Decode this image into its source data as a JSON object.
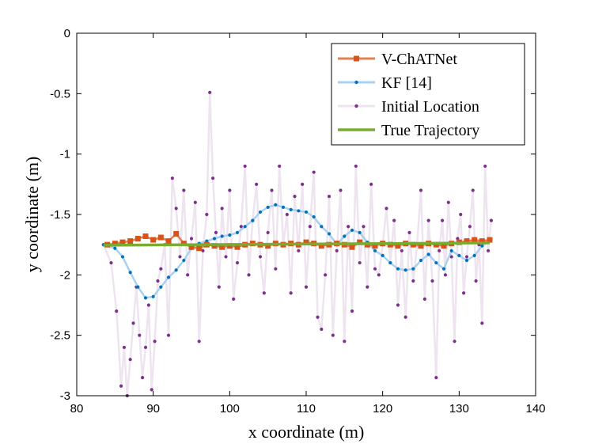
{
  "chart_data": {
    "type": "line",
    "title": "",
    "xlabel": "x coordinate (m)",
    "ylabel": "y coordinate (m)",
    "xlim": [
      80,
      140
    ],
    "ylim": [
      -3,
      0
    ],
    "xticks": [
      80,
      90,
      100,
      110,
      120,
      130,
      140
    ],
    "yticks": [
      0,
      -0.5,
      -1,
      -1.5,
      -2,
      -2.5,
      -3
    ],
    "xtick_labels": [
      "80",
      "90",
      "100",
      "110",
      "120",
      "130",
      "140"
    ],
    "ytick_labels": [
      "0",
      "-0.5",
      "-1",
      "-1.5",
      "-2",
      "-2.5",
      "-3"
    ],
    "grid": false,
    "legend_position": "top-right",
    "series": [
      {
        "name": "Initial Location",
        "color": "#7e2f8e",
        "line_color": "#ede4ef",
        "marker": "dot",
        "points": [
          [
            83.5,
            -1.75
          ],
          [
            84.5,
            -1.9
          ],
          [
            85.2,
            -2.3
          ],
          [
            85.8,
            -2.92
          ],
          [
            86.2,
            -2.6
          ],
          [
            86.6,
            -3.0
          ],
          [
            87.0,
            -2.7
          ],
          [
            87.4,
            -2.4
          ],
          [
            87.8,
            -2.1
          ],
          [
            88.2,
            -2.5
          ],
          [
            88.6,
            -2.85
          ],
          [
            89.0,
            -2.6
          ],
          [
            89.4,
            -2.25
          ],
          [
            89.8,
            -2.95
          ],
          [
            90.2,
            -2.55
          ],
          [
            90.6,
            -2.05
          ],
          [
            91.0,
            -1.95
          ],
          [
            91.5,
            -1.75
          ],
          [
            92.0,
            -2.5
          ],
          [
            92.5,
            -1.2
          ],
          [
            93.0,
            -1.45
          ],
          [
            93.5,
            -1.85
          ],
          [
            94.0,
            -1.3
          ],
          [
            94.5,
            -2.0
          ],
          [
            95.0,
            -1.7
          ],
          [
            95.5,
            -1.4
          ],
          [
            96.0,
            -2.55
          ],
          [
            96.5,
            -1.8
          ],
          [
            97.0,
            -1.5
          ],
          [
            97.4,
            -0.49
          ],
          [
            97.8,
            -1.2
          ],
          [
            98.2,
            -1.65
          ],
          [
            98.6,
            -2.1
          ],
          [
            99.0,
            -1.45
          ],
          [
            99.5,
            -1.85
          ],
          [
            100.0,
            -1.3
          ],
          [
            100.5,
            -2.2
          ],
          [
            101.0,
            -1.9
          ],
          [
            101.5,
            -1.6
          ],
          [
            102.0,
            -1.1
          ],
          [
            102.5,
            -2.0
          ],
          [
            103.0,
            -1.55
          ],
          [
            103.5,
            -1.25
          ],
          [
            104.0,
            -1.85
          ],
          [
            104.5,
            -2.15
          ],
          [
            105.0,
            -1.65
          ],
          [
            105.5,
            -1.3
          ],
          [
            106.0,
            -1.95
          ],
          [
            106.5,
            -1.1
          ],
          [
            107.0,
            -1.75
          ],
          [
            107.5,
            -1.5
          ],
          [
            108.0,
            -2.15
          ],
          [
            108.5,
            -1.35
          ],
          [
            109.0,
            -1.8
          ],
          [
            109.5,
            -1.25
          ],
          [
            110.0,
            -2.1
          ],
          [
            110.5,
            -1.6
          ],
          [
            111.0,
            -1.15
          ],
          [
            111.5,
            -2.35
          ],
          [
            112.0,
            -2.45
          ],
          [
            112.5,
            -2.0
          ],
          [
            113.0,
            -1.35
          ],
          [
            113.5,
            -2.5
          ],
          [
            114.0,
            -1.8
          ],
          [
            114.5,
            -1.3
          ],
          [
            115.0,
            -2.55
          ],
          [
            115.5,
            -1.6
          ],
          [
            116.0,
            -2.3
          ],
          [
            116.5,
            -1.1
          ],
          [
            117.0,
            -1.9
          ],
          [
            117.5,
            -1.6
          ],
          [
            118.0,
            -2.1
          ],
          [
            118.5,
            -1.25
          ],
          [
            119.0,
            -1.95
          ],
          [
            119.5,
            -2.0
          ],
          [
            120.0,
            -1.75
          ],
          [
            120.5,
            -1.45
          ],
          [
            121.0,
            -1.9
          ],
          [
            121.5,
            -1.55
          ],
          [
            122.0,
            -2.25
          ],
          [
            122.5,
            -1.8
          ],
          [
            123.0,
            -2.35
          ],
          [
            123.5,
            -1.65
          ],
          [
            124.0,
            -2.05
          ],
          [
            124.5,
            -1.75
          ],
          [
            125.0,
            -1.3
          ],
          [
            125.5,
            -2.2
          ],
          [
            126.0,
            -1.55
          ],
          [
            126.5,
            -2.05
          ],
          [
            127.0,
            -2.85
          ],
          [
            127.4,
            -1.8
          ],
          [
            127.8,
            -1.55
          ],
          [
            128.2,
            -2.0
          ],
          [
            128.6,
            -1.4
          ],
          [
            129.0,
            -1.85
          ],
          [
            129.4,
            -2.55
          ],
          [
            129.8,
            -1.7
          ],
          [
            130.2,
            -1.5
          ],
          [
            130.6,
            -2.15
          ],
          [
            131.0,
            -1.85
          ],
          [
            131.4,
            -1.6
          ],
          [
            131.8,
            -1.3
          ],
          [
            132.2,
            -2.05
          ],
          [
            132.6,
            -1.75
          ],
          [
            133.0,
            -2.4
          ],
          [
            133.4,
            -1.1
          ],
          [
            133.8,
            -1.8
          ],
          [
            134.2,
            -1.55
          ]
        ]
      },
      {
        "name": "KF [14]",
        "color": "#0072bd",
        "line_color": "#a9d0f0",
        "marker": "dot",
        "points": [
          [
            83.5,
            -1.75
          ],
          [
            85.0,
            -1.78
          ],
          [
            86.0,
            -1.85
          ],
          [
            87.0,
            -1.98
          ],
          [
            88.0,
            -2.1
          ],
          [
            89.0,
            -2.19
          ],
          [
            90.0,
            -2.18
          ],
          [
            91.0,
            -2.1
          ],
          [
            92.0,
            -2.02
          ],
          [
            93.0,
            -1.96
          ],
          [
            94.0,
            -1.88
          ],
          [
            95.0,
            -1.78
          ],
          [
            96.0,
            -1.74
          ],
          [
            97.0,
            -1.72
          ],
          [
            98.0,
            -1.7
          ],
          [
            99.0,
            -1.68
          ],
          [
            100.0,
            -1.67
          ],
          [
            101.0,
            -1.65
          ],
          [
            102.0,
            -1.6
          ],
          [
            103.0,
            -1.55
          ],
          [
            104.0,
            -1.48
          ],
          [
            105.0,
            -1.44
          ],
          [
            106.0,
            -1.42
          ],
          [
            107.0,
            -1.44
          ],
          [
            108.0,
            -1.46
          ],
          [
            109.0,
            -1.47
          ],
          [
            110.0,
            -1.48
          ],
          [
            111.0,
            -1.52
          ],
          [
            112.0,
            -1.6
          ],
          [
            113.0,
            -1.66
          ],
          [
            114.0,
            -1.75
          ],
          [
            115.0,
            -1.68
          ],
          [
            116.0,
            -1.63
          ],
          [
            117.0,
            -1.65
          ],
          [
            118.0,
            -1.73
          ],
          [
            119.0,
            -1.8
          ],
          [
            120.0,
            -1.84
          ],
          [
            121.0,
            -1.9
          ],
          [
            122.0,
            -1.95
          ],
          [
            123.0,
            -1.96
          ],
          [
            124.0,
            -1.95
          ],
          [
            125.0,
            -1.88
          ],
          [
            126.0,
            -1.83
          ],
          [
            127.0,
            -1.9
          ],
          [
            128.0,
            -1.95
          ],
          [
            129.0,
            -1.8
          ],
          [
            130.0,
            -1.84
          ],
          [
            131.0,
            -1.88
          ],
          [
            132.0,
            -1.84
          ],
          [
            133.0,
            -1.76
          ],
          [
            134.0,
            -1.72
          ]
        ]
      },
      {
        "name": "V-ChATNet",
        "color": "#d95319",
        "line_color": "#e4804f",
        "marker": "square",
        "points": [
          [
            84.0,
            -1.75
          ],
          [
            85.0,
            -1.74
          ],
          [
            86.0,
            -1.73
          ],
          [
            87.0,
            -1.72
          ],
          [
            88.0,
            -1.7
          ],
          [
            89.0,
            -1.68
          ],
          [
            90.0,
            -1.71
          ],
          [
            91.0,
            -1.69
          ],
          [
            92.0,
            -1.72
          ],
          [
            93.0,
            -1.66
          ],
          [
            94.0,
            -1.74
          ],
          [
            95.0,
            -1.77
          ],
          [
            96.0,
            -1.78
          ],
          [
            97.0,
            -1.75
          ],
          [
            98.0,
            -1.76
          ],
          [
            99.0,
            -1.77
          ],
          [
            100.0,
            -1.76
          ],
          [
            101.0,
            -1.77
          ],
          [
            102.0,
            -1.75
          ],
          [
            103.0,
            -1.74
          ],
          [
            104.0,
            -1.75
          ],
          [
            105.0,
            -1.76
          ],
          [
            106.0,
            -1.74
          ],
          [
            107.0,
            -1.75
          ],
          [
            108.0,
            -1.74
          ],
          [
            109.0,
            -1.75
          ],
          [
            110.0,
            -1.73
          ],
          [
            111.0,
            -1.74
          ],
          [
            112.0,
            -1.76
          ],
          [
            113.0,
            -1.75
          ],
          [
            114.0,
            -1.74
          ],
          [
            115.0,
            -1.75
          ],
          [
            116.0,
            -1.77
          ],
          [
            117.0,
            -1.73
          ],
          [
            118.0,
            -1.75
          ],
          [
            119.0,
            -1.76
          ],
          [
            120.0,
            -1.74
          ],
          [
            121.0,
            -1.75
          ],
          [
            122.0,
            -1.76
          ],
          [
            123.0,
            -1.74
          ],
          [
            124.0,
            -1.75
          ],
          [
            125.0,
            -1.76
          ],
          [
            126.0,
            -1.74
          ],
          [
            127.0,
            -1.75
          ],
          [
            128.0,
            -1.76
          ],
          [
            129.0,
            -1.74
          ],
          [
            130.0,
            -1.73
          ],
          [
            131.0,
            -1.72
          ],
          [
            132.0,
            -1.71
          ],
          [
            133.0,
            -1.72
          ],
          [
            134.0,
            -1.71
          ]
        ]
      },
      {
        "name": "True Trajectory",
        "color": "#77ac30",
        "line_color": "#77ac30",
        "marker": "none",
        "points": [
          [
            83.5,
            -1.755
          ],
          [
            134.0,
            -1.735
          ]
        ]
      }
    ],
    "legend_order": [
      "V-ChATNet",
      "KF [14]",
      "Initial Location",
      "True Trajectory"
    ]
  }
}
